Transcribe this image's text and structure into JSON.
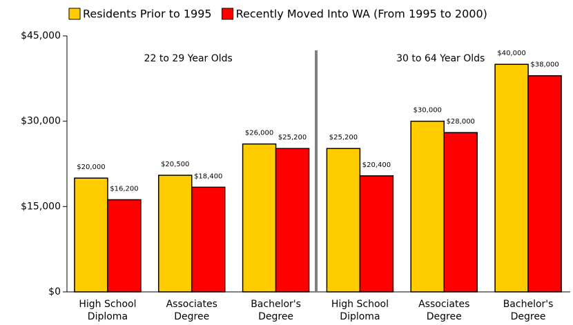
{
  "chart_data": {
    "type": "bar",
    "categories": [
      "High School Diploma",
      "Associates Degree",
      "Bachelor's Degree",
      "High School Diploma",
      "Associates Degree",
      "Bachelor's Degree"
    ],
    "series": [
      {
        "name": "Residents Prior to 1995",
        "color": "#ffcc00",
        "values": [
          20000,
          20500,
          26000,
          25200,
          30000,
          40000
        ],
        "value_labels": [
          "$20,000",
          "$20,500",
          "$26,000",
          "$25,200",
          "$30,000",
          "$40,000"
        ]
      },
      {
        "name": "Recently Moved Into WA (From 1995 to 2000)",
        "color": "#ff0000",
        "values": [
          16200,
          18400,
          25200,
          20400,
          28000,
          38000
        ],
        "value_labels": [
          "$16,200",
          "$18,400",
          "$25,200",
          "$20,400",
          "$28,000",
          "$38,000"
        ]
      }
    ],
    "annotations": [
      "22 to 29 Year Olds",
      "30 to 64 Year Olds"
    ],
    "ylim": [
      0,
      45000
    ],
    "yticks": [
      {
        "value": 0,
        "label": "$0"
      },
      {
        "value": 15000,
        "label": "$15,000"
      },
      {
        "value": 30000,
        "label": "$30,000"
      },
      {
        "value": 45000,
        "label": "$45,000"
      }
    ],
    "grid": false
  }
}
